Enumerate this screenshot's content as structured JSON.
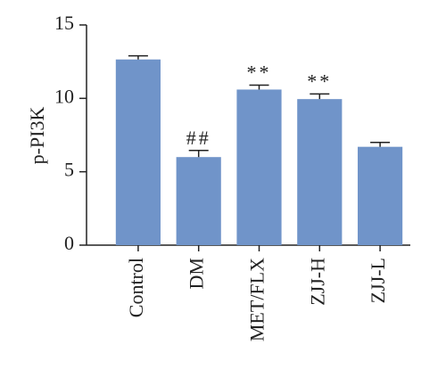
{
  "chart_data": {
    "type": "bar",
    "ylabel": "p-PI3K",
    "categories": [
      "Control",
      "DM",
      "MET/FLX",
      "ZJJ-H",
      "ZJJ-L"
    ],
    "values": [
      12.65,
      6.0,
      10.6,
      9.95,
      6.7
    ],
    "errors": [
      0.25,
      0.45,
      0.3,
      0.35,
      0.3
    ],
    "annotations": [
      null,
      "##",
      "**",
      "**",
      null
    ],
    "color": "#7094c9",
    "ylim": [
      0,
      15
    ],
    "yticks": [
      0,
      5,
      10,
      15
    ]
  }
}
